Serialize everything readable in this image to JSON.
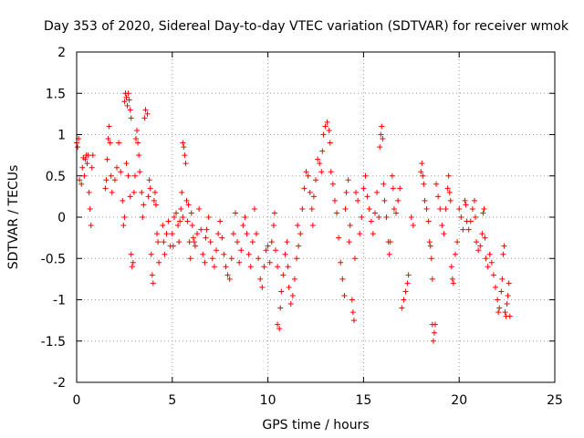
{
  "chart_data": {
    "type": "scatter",
    "title": "Day 353 of 2020, Sidereal Day-to-day VTEC variation (SDTVAR) for receiver wmok",
    "xlabel": "GPS time / hours",
    "ylabel": "SDTVAR / TECUs",
    "xlim": [
      0,
      25
    ],
    "ylim": [
      -2,
      2
    ],
    "xticks": [
      "0",
      "5",
      "10",
      "15",
      "20",
      "25"
    ],
    "yticks": [
      "2",
      "1.5",
      "1",
      "0.5",
      "0",
      "-0.5",
      "-1",
      "-1.5",
      "-2"
    ],
    "grid": true,
    "marker": "+",
    "series": [
      {
        "name": "SDTVAR",
        "color": "#ff0000",
        "points": [
          [
            0.0,
            0.9
          ],
          [
            0.05,
            0.85
          ],
          [
            0.1,
            0.95
          ],
          [
            0.15,
            0.45
          ],
          [
            0.25,
            0.4
          ],
          [
            0.3,
            0.6
          ],
          [
            0.35,
            0.72
          ],
          [
            0.4,
            0.5
          ],
          [
            0.45,
            0.7
          ],
          [
            0.5,
            0.75
          ],
          [
            0.55,
            0.65
          ],
          [
            0.6,
            0.75
          ],
          [
            0.65,
            0.3
          ],
          [
            0.7,
            0.1
          ],
          [
            0.75,
            -0.1
          ],
          [
            0.8,
            0.6
          ],
          [
            0.85,
            0.75
          ],
          [
            1.5,
            0.35
          ],
          [
            1.55,
            0.45
          ],
          [
            1.6,
            0.7
          ],
          [
            1.65,
            0.95
          ],
          [
            1.7,
            1.1
          ],
          [
            1.75,
            0.9
          ],
          [
            1.8,
            0.5
          ],
          [
            1.85,
            0.3
          ],
          [
            2.0,
            0.45
          ],
          [
            2.1,
            0.6
          ],
          [
            2.2,
            0.9
          ],
          [
            2.3,
            0.55
          ],
          [
            2.4,
            0.2
          ],
          [
            2.45,
            -0.1
          ],
          [
            2.5,
            0.0
          ],
          [
            2.5,
            1.4
          ],
          [
            2.55,
            1.5
          ],
          [
            2.6,
            1.45
          ],
          [
            2.65,
            1.35
          ],
          [
            2.7,
            1.5
          ],
          [
            2.75,
            1.42
          ],
          [
            2.8,
            1.3
          ],
          [
            2.85,
            1.2
          ],
          [
            2.6,
            0.65
          ],
          [
            2.7,
            0.5
          ],
          [
            2.8,
            0.25
          ],
          [
            2.85,
            -0.45
          ],
          [
            2.9,
            -0.6
          ],
          [
            2.95,
            -0.55
          ],
          [
            3.0,
            0.3
          ],
          [
            3.05,
            0.5
          ],
          [
            3.1,
            0.95
          ],
          [
            3.15,
            1.05
          ],
          [
            3.2,
            0.9
          ],
          [
            3.25,
            0.75
          ],
          [
            3.3,
            0.55
          ],
          [
            3.4,
            0.3
          ],
          [
            3.45,
            0.0
          ],
          [
            3.5,
            0.15
          ],
          [
            3.55,
            1.2
          ],
          [
            3.6,
            1.3
          ],
          [
            3.7,
            1.25
          ],
          [
            3.75,
            0.25
          ],
          [
            3.8,
            0.45
          ],
          [
            3.85,
            0.35
          ],
          [
            3.9,
            -0.45
          ],
          [
            3.95,
            -0.7
          ],
          [
            4.0,
            -0.8
          ],
          [
            4.05,
            0.2
          ],
          [
            4.1,
            0.3
          ],
          [
            4.15,
            0.15
          ],
          [
            4.2,
            -0.2
          ],
          [
            4.25,
            -0.3
          ],
          [
            4.3,
            -0.55
          ],
          [
            4.5,
            -0.1
          ],
          [
            4.55,
            -0.3
          ],
          [
            4.6,
            -0.45
          ],
          [
            4.7,
            -0.2
          ],
          [
            4.8,
            -0.05
          ],
          [
            4.9,
            -0.35
          ],
          [
            5.0,
            -0.2
          ],
          [
            5.05,
            -0.35
          ],
          [
            5.1,
            0.0
          ],
          [
            5.2,
            0.05
          ],
          [
            5.3,
            -0.1
          ],
          [
            5.35,
            -0.3
          ],
          [
            5.4,
            -0.05
          ],
          [
            5.45,
            0.1
          ],
          [
            5.5,
            0.3
          ],
          [
            5.55,
            0.0
          ],
          [
            5.55,
            0.9
          ],
          [
            5.6,
            0.85
          ],
          [
            5.65,
            0.75
          ],
          [
            5.7,
            0.65
          ],
          [
            5.75,
            0.2
          ],
          [
            5.8,
            -0.05
          ],
          [
            5.85,
            0.15
          ],
          [
            5.9,
            -0.3
          ],
          [
            5.95,
            -0.5
          ],
          [
            6.0,
            0.05
          ],
          [
            6.05,
            -0.1
          ],
          [
            6.1,
            -0.25
          ],
          [
            6.15,
            -0.3
          ],
          [
            6.2,
            -0.35
          ],
          [
            6.3,
            -0.2
          ],
          [
            6.4,
            0.1
          ],
          [
            6.5,
            -0.15
          ],
          [
            6.6,
            -0.45
          ],
          [
            6.7,
            -0.55
          ],
          [
            6.75,
            -0.25
          ],
          [
            6.8,
            -0.15
          ],
          [
            6.9,
            0.0
          ],
          [
            7.0,
            -0.3
          ],
          [
            7.1,
            -0.5
          ],
          [
            7.2,
            -0.6
          ],
          [
            7.3,
            -0.4
          ],
          [
            7.4,
            -0.2
          ],
          [
            7.5,
            -0.05
          ],
          [
            7.6,
            -0.25
          ],
          [
            7.7,
            -0.45
          ],
          [
            7.8,
            -0.6
          ],
          [
            7.9,
            -0.7
          ],
          [
            8.0,
            -0.75
          ],
          [
            8.1,
            -0.5
          ],
          [
            8.2,
            -0.2
          ],
          [
            8.3,
            0.05
          ],
          [
            8.4,
            -0.3
          ],
          [
            8.5,
            -0.55
          ],
          [
            8.6,
            -0.4
          ],
          [
            8.7,
            -0.1
          ],
          [
            8.8,
            0.0
          ],
          [
            8.9,
            -0.2
          ],
          [
            9.0,
            -0.45
          ],
          [
            9.1,
            -0.6
          ],
          [
            9.2,
            -0.3
          ],
          [
            9.3,
            0.1
          ],
          [
            9.4,
            -0.2
          ],
          [
            9.5,
            -0.5
          ],
          [
            9.6,
            -0.75
          ],
          [
            9.7,
            -0.85
          ],
          [
            9.8,
            -0.6
          ],
          [
            9.9,
            -0.4
          ],
          [
            10.0,
            -0.35
          ],
          [
            10.1,
            -0.55
          ],
          [
            10.2,
            -0.3
          ],
          [
            10.3,
            -0.1
          ],
          [
            10.35,
            0.05
          ],
          [
            10.4,
            -0.4
          ],
          [
            10.5,
            -0.6
          ],
          [
            10.5,
            -1.3
          ],
          [
            10.6,
            -1.35
          ],
          [
            10.65,
            -1.1
          ],
          [
            10.7,
            -0.9
          ],
          [
            10.8,
            -0.7
          ],
          [
            10.9,
            -0.45
          ],
          [
            11.0,
            -0.3
          ],
          [
            11.05,
            -0.6
          ],
          [
            11.1,
            -0.85
          ],
          [
            11.2,
            -1.05
          ],
          [
            11.3,
            -0.95
          ],
          [
            11.4,
            -0.75
          ],
          [
            11.5,
            -0.5
          ],
          [
            11.55,
            -0.1
          ],
          [
            11.6,
            -0.35
          ],
          [
            11.7,
            -0.2
          ],
          [
            11.8,
            0.1
          ],
          [
            11.9,
            0.35
          ],
          [
            12.0,
            0.55
          ],
          [
            12.1,
            0.5
          ],
          [
            12.2,
            0.3
          ],
          [
            12.3,
            0.1
          ],
          [
            12.35,
            -0.1
          ],
          [
            12.4,
            0.25
          ],
          [
            12.5,
            0.45
          ],
          [
            12.6,
            0.7
          ],
          [
            12.7,
            0.65
          ],
          [
            12.8,
            0.55
          ],
          [
            12.85,
            0.8
          ],
          [
            12.9,
            1.0
          ],
          [
            13.0,
            1.1
          ],
          [
            13.1,
            1.15
          ],
          [
            13.2,
            1.05
          ],
          [
            13.25,
            0.9
          ],
          [
            13.3,
            0.55
          ],
          [
            13.4,
            0.4
          ],
          [
            13.5,
            0.2
          ],
          [
            13.6,
            0.05
          ],
          [
            13.7,
            -0.25
          ],
          [
            13.8,
            -0.55
          ],
          [
            13.9,
            -0.75
          ],
          [
            14.0,
            -0.95
          ],
          [
            14.05,
            0.1
          ],
          [
            14.1,
            0.3
          ],
          [
            14.2,
            0.45
          ],
          [
            14.25,
            -0.3
          ],
          [
            14.3,
            -0.1
          ],
          [
            14.4,
            -1.0
          ],
          [
            14.45,
            -1.15
          ],
          [
            14.5,
            -1.25
          ],
          [
            14.55,
            -0.5
          ],
          [
            14.6,
            0.3
          ],
          [
            14.7,
            0.2
          ],
          [
            14.8,
            -0.2
          ],
          [
            14.9,
            0.0
          ],
          [
            15.0,
            0.35
          ],
          [
            15.1,
            0.5
          ],
          [
            15.2,
            0.25
          ],
          [
            15.3,
            0.1
          ],
          [
            15.4,
            -0.05
          ],
          [
            15.5,
            -0.2
          ],
          [
            15.6,
            0.05
          ],
          [
            15.7,
            0.3
          ],
          [
            15.8,
            0.0
          ],
          [
            15.85,
            0.85
          ],
          [
            15.9,
            1.0
          ],
          [
            15.95,
            1.1
          ],
          [
            16.0,
            0.95
          ],
          [
            16.05,
            0.4
          ],
          [
            16.1,
            0.2
          ],
          [
            16.2,
            0.0
          ],
          [
            16.3,
            -0.3
          ],
          [
            16.35,
            -0.45
          ],
          [
            16.4,
            -0.3
          ],
          [
            16.5,
            0.5
          ],
          [
            16.55,
            0.35
          ],
          [
            16.6,
            0.1
          ],
          [
            16.7,
            0.05
          ],
          [
            16.8,
            0.2
          ],
          [
            16.9,
            0.35
          ],
          [
            17.0,
            -1.1
          ],
          [
            17.1,
            -1.0
          ],
          [
            17.2,
            -0.9
          ],
          [
            17.3,
            -0.8
          ],
          [
            17.35,
            -0.7
          ],
          [
            17.5,
            0.0
          ],
          [
            17.6,
            -0.1
          ],
          [
            18.0,
            0.55
          ],
          [
            18.05,
            0.65
          ],
          [
            18.1,
            0.5
          ],
          [
            18.15,
            0.4
          ],
          [
            18.2,
            0.2
          ],
          [
            18.3,
            0.1
          ],
          [
            18.4,
            -0.05
          ],
          [
            18.45,
            -0.3
          ],
          [
            18.5,
            -0.35
          ],
          [
            18.55,
            -0.5
          ],
          [
            18.6,
            -0.75
          ],
          [
            18.6,
            -1.3
          ],
          [
            18.65,
            -1.5
          ],
          [
            18.7,
            -1.4
          ],
          [
            18.75,
            -1.3
          ],
          [
            18.8,
            0.4
          ],
          [
            18.9,
            0.25
          ],
          [
            19.0,
            0.1
          ],
          [
            19.1,
            -0.1
          ],
          [
            19.2,
            -0.2
          ],
          [
            19.3,
            0.1
          ],
          [
            19.4,
            0.35
          ],
          [
            19.45,
            0.5
          ],
          [
            19.5,
            0.3
          ],
          [
            19.55,
            0.2
          ],
          [
            19.6,
            -0.6
          ],
          [
            19.65,
            -0.75
          ],
          [
            19.7,
            -0.8
          ],
          [
            19.8,
            -0.45
          ],
          [
            19.9,
            -0.3
          ],
          [
            20.0,
            0.1
          ],
          [
            20.1,
            0.0
          ],
          [
            20.2,
            -0.15
          ],
          [
            20.3,
            0.2
          ],
          [
            20.35,
            0.15
          ],
          [
            20.4,
            -0.05
          ],
          [
            20.5,
            -0.15
          ],
          [
            20.6,
            -0.05
          ],
          [
            20.7,
            0.1
          ],
          [
            20.8,
            0.2
          ],
          [
            20.85,
            0.0
          ],
          [
            20.9,
            -0.3
          ],
          [
            21.0,
            -0.4
          ],
          [
            21.1,
            -0.35
          ],
          [
            21.2,
            -0.2
          ],
          [
            21.25,
            0.05
          ],
          [
            21.3,
            0.1
          ],
          [
            21.35,
            -0.25
          ],
          [
            21.4,
            -0.5
          ],
          [
            21.5,
            -0.6
          ],
          [
            21.6,
            -0.45
          ],
          [
            21.7,
            -0.55
          ],
          [
            21.8,
            -0.7
          ],
          [
            21.9,
            -0.85
          ],
          [
            22.0,
            -1.0
          ],
          [
            22.05,
            -1.15
          ],
          [
            22.1,
            -1.1
          ],
          [
            22.2,
            -0.9
          ],
          [
            22.25,
            -0.75
          ],
          [
            22.3,
            -0.45
          ],
          [
            22.35,
            -0.35
          ],
          [
            22.4,
            -1.15
          ],
          [
            22.45,
            -1.2
          ],
          [
            22.5,
            -1.05
          ],
          [
            22.55,
            -0.95
          ],
          [
            22.6,
            -0.8
          ],
          [
            22.65,
            -1.2
          ]
        ]
      }
    ]
  }
}
